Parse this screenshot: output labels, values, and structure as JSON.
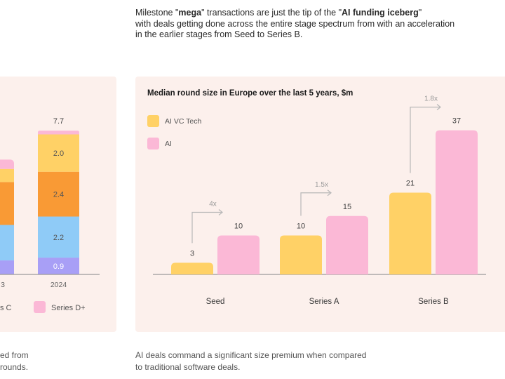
{
  "intro": {
    "part1": "Milestone \"",
    "bold1": "mega",
    "part2": "\" transactions are just the tip of the \"",
    "bold2": "AI funding iceberg",
    "part3": "\"",
    "line2": "with deals getting done across the entire stage spectrum from with an acceleration",
    "line3": "in the earlier stages from Seed to Series B."
  },
  "footer_left": {
    "line1": "ed from",
    "line2": "rounds."
  },
  "footer_right": {
    "line1": "AI deals command a significant size premium when compared",
    "line2": "to traditional software deals."
  },
  "colors": {
    "panel_bg": "#fcf0ec",
    "ai_vc_tech": "#ffd166",
    "ai": "#fbb8d6",
    "orange": "#f99a35",
    "blue": "#8fcbf7",
    "purple": "#a89ff6",
    "arrow": "#b8b8b8",
    "axis": "#9a9a9a"
  },
  "chart_data": [
    {
      "type": "bar",
      "stacked": true,
      "partially_visible": true,
      "categories": [
        "3",
        "2024"
      ],
      "year_labels": [
        "3",
        "2024"
      ],
      "totals": [
        "",
        "7.7"
      ],
      "series": [
        {
          "name": "",
          "color": "#a89ff6",
          "values": [
            null,
            0.9
          ]
        },
        {
          "name": "",
          "color": "#8fcbf7",
          "values": [
            null,
            2.2
          ]
        },
        {
          "name": "",
          "color": "#f99a35",
          "values": [
            null,
            2.4
          ]
        },
        {
          "name": "",
          "color": "#ffd166",
          "values": [
            null,
            2.0
          ]
        },
        {
          "name": "Series D+",
          "color": "#fbb8d6",
          "values": [
            null,
            0.2
          ]
        }
      ],
      "value_labels": [
        "0.9",
        "2.2",
        "2.4",
        "2.0"
      ],
      "legend": [
        {
          "label": "s C",
          "color": "#f99a35"
        },
        {
          "label": "Series D+",
          "color": "#fbb8d6"
        }
      ],
      "legend_position": "bottom"
    },
    {
      "type": "bar",
      "title": "Median round size in Europe over the last 5 years, $m",
      "categories": [
        "Seed",
        "Series A",
        "Series B"
      ],
      "series": [
        {
          "name": "AI VC Tech",
          "color": "#ffd166",
          "values": [
            3,
            10,
            21
          ]
        },
        {
          "name": "AI",
          "color": "#fbb8d6",
          "values": [
            10,
            15,
            37
          ]
        }
      ],
      "multipliers": [
        "4x",
        "1.5x",
        "1.8x"
      ],
      "legend_position": "top-left",
      "grid": false
    }
  ]
}
